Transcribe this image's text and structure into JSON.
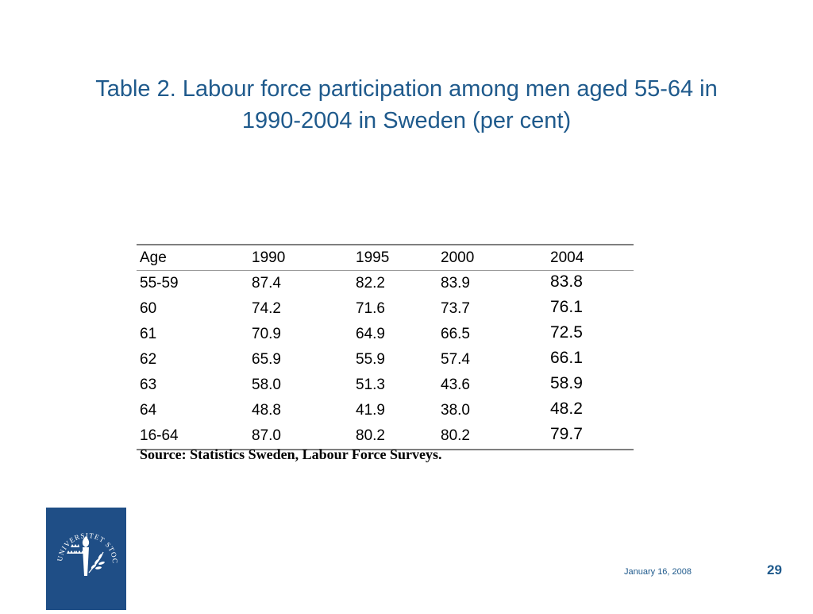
{
  "slide": {
    "title": "Table 2. Labour force participation among men aged 55-64 in\n1990-2004  in Sweden (per cent)"
  },
  "table": {
    "headers": [
      "Age",
      "1990",
      "1995",
      "2000",
      "2004"
    ],
    "rows": [
      [
        "55-59",
        "87.4",
        "82.2",
        "83.9",
        "83.8"
      ],
      [
        "60",
        "74.2",
        "71.6",
        "73.7",
        "76.1"
      ],
      [
        "61",
        "70.9",
        "64.9",
        "66.5",
        "72.5"
      ],
      [
        "62",
        "65.9",
        "55.9",
        "57.4",
        "66.1"
      ],
      [
        "63",
        "58.0",
        "51.3",
        "43.6",
        "58.9"
      ],
      [
        "64",
        "48.8",
        "41.9",
        "38.0",
        "48.2"
      ],
      [
        "16-64",
        "87.0",
        "80.2",
        "80.2",
        "79.7"
      ]
    ],
    "source": "Source: Statistics Sweden, Labour Force Surveys."
  },
  "logo": {
    "text": "UNIVERSITET STOCKHOLMS",
    "color": "#1f4e86"
  },
  "footer": {
    "date": "January 16,  2008",
    "page_number": "29"
  },
  "colors": {
    "title": "#1f5a8c",
    "logo_bg": "#1f4e86",
    "rule": "#7f7f7f"
  }
}
